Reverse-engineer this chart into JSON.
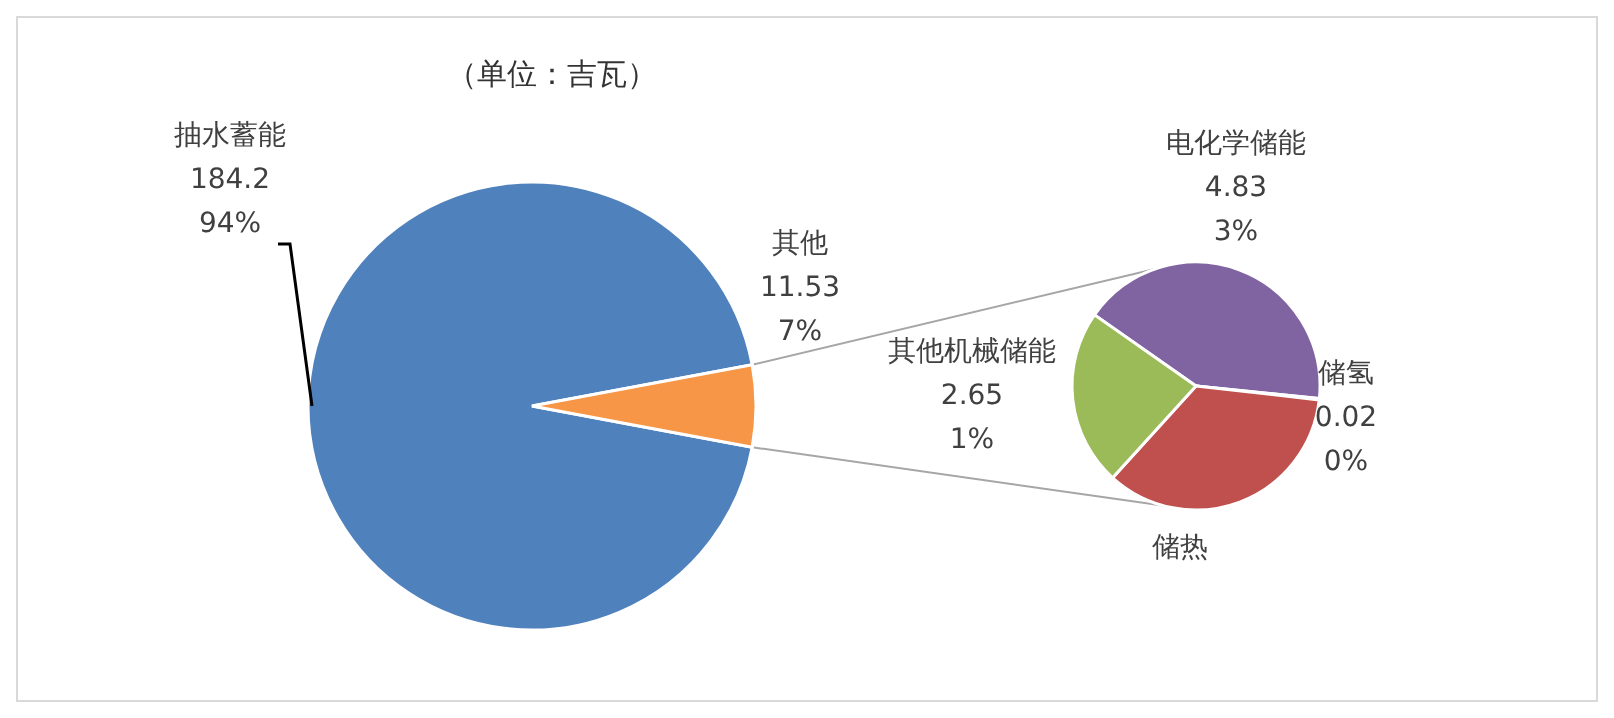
{
  "chart_data": [
    {
      "type": "pie",
      "title": "（单位：吉瓦）",
      "categories": [
        "抽水蓄能",
        "其他"
      ],
      "values": [
        184.2,
        11.53
      ],
      "colors": [
        "#4f81bd",
        "#f79646"
      ],
      "value_labels": [
        "184.2\n94%",
        "11.53\n7%"
      ]
    },
    {
      "type": "pie",
      "categories": [
        "电化学储能",
        "储氢",
        "储热",
        "其他机械储能"
      ],
      "values": [
        4.83,
        0.02,
        4.03,
        2.65
      ],
      "colors": [
        "#8064a2",
        "#4bacc6",
        "#c0504d",
        "#9bbb59"
      ],
      "value_labels": [
        "4.83\n3%",
        "0.02\n0%",
        null,
        "2.65\n1%"
      ]
    }
  ]
}
